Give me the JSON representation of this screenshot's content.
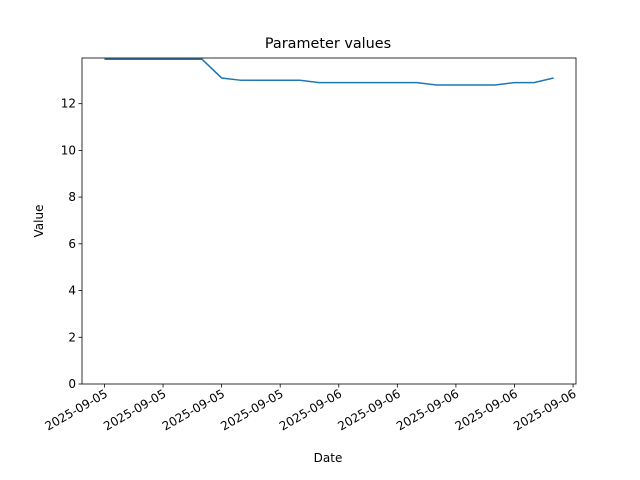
{
  "chart_data": {
    "type": "line",
    "title": "Parameter values",
    "x_label": "Date",
    "y_label": "Value",
    "x": [
      0,
      2,
      4,
      6,
      8,
      10,
      12,
      14,
      16,
      18,
      20,
      22,
      24,
      26,
      28,
      30,
      32,
      34,
      36,
      38,
      40,
      42,
      44,
      46
    ],
    "series": [
      {
        "name": "Value",
        "color": "#1f77b4",
        "values": [
          13.9,
          13.9,
          13.9,
          13.9,
          13.9,
          13.9,
          13.1,
          13.0,
          13.0,
          13.0,
          13.0,
          12.9,
          12.9,
          12.9,
          12.9,
          12.9,
          12.9,
          12.8,
          12.8,
          12.8,
          12.8,
          12.9,
          12.9,
          13.1
        ]
      }
    ],
    "xlim": [
      -2.3,
      48.3
    ],
    "xticks": [
      {
        "value": 0,
        "label": "2025-09-05"
      },
      {
        "value": 6,
        "label": "2025-09-05"
      },
      {
        "value": 12,
        "label": "2025-09-05"
      },
      {
        "value": 18,
        "label": "2025-09-05"
      },
      {
        "value": 24,
        "label": "2025-09-06"
      },
      {
        "value": 30,
        "label": "2025-09-06"
      },
      {
        "value": 36,
        "label": "2025-09-06"
      },
      {
        "value": 42,
        "label": "2025-09-06"
      },
      {
        "value": 48,
        "label": "2025-09-06"
      }
    ],
    "ylim": [
      0,
      13.955
    ],
    "yticks": [
      0,
      2,
      4,
      6,
      8,
      10,
      12
    ]
  }
}
